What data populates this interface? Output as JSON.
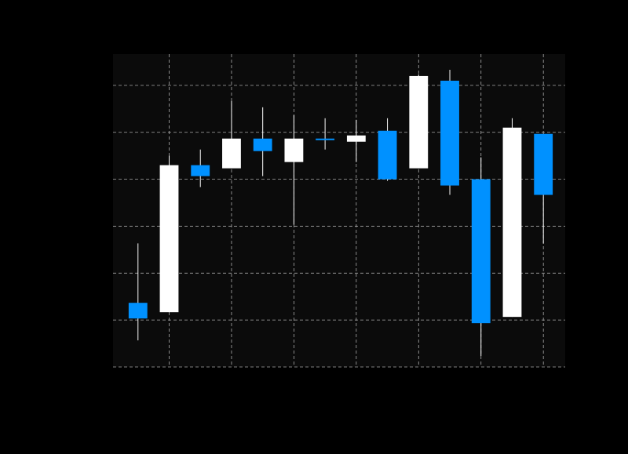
{
  "colors": {
    "background": "#000000",
    "plot_background": "#0b0b0b",
    "grid": "#aaaaaa",
    "increasing": "#ffffff",
    "decreasing": "#0091ff",
    "wick": "#ffffff"
  },
  "chart_data": {
    "type": "candlestick",
    "title": "",
    "xlabel": "",
    "ylabel": "",
    "x": [
      1,
      2,
      3,
      4,
      5,
      6,
      7,
      8,
      9,
      10,
      11,
      12,
      13,
      14
    ],
    "xlim": [
      0.2,
      14.7
    ],
    "ylim": [
      0,
      100
    ],
    "grid": true,
    "legend": "none",
    "candles": [
      {
        "open": 20.5,
        "high": 39.5,
        "low": 8.5,
        "close": 15.5
      },
      {
        "open": 17.5,
        "high": 67.5,
        "low": 17.5,
        "close": 64.5
      },
      {
        "open": 64.5,
        "high": 69.5,
        "low": 57.5,
        "close": 61.0
      },
      {
        "open": 63.5,
        "high": 85.0,
        "low": 63.5,
        "close": 73.0
      },
      {
        "open": 73.0,
        "high": 83.0,
        "low": 61.0,
        "close": 69.0
      },
      {
        "open": 65.5,
        "high": 80.5,
        "low": 45.5,
        "close": 73.0
      },
      {
        "open": 73.0,
        "high": 79.5,
        "low": 69.5,
        "close": 72.5
      },
      {
        "open": 72.0,
        "high": 79.0,
        "low": 65.5,
        "close": 74.0
      },
      {
        "open": 75.5,
        "high": 79.5,
        "low": 59.5,
        "close": 60.0
      },
      {
        "open": 63.5,
        "high": 93.5,
        "low": 63.5,
        "close": 93.0
      },
      {
        "open": 91.5,
        "high": 95.0,
        "low": 55.0,
        "close": 58.0
      },
      {
        "open": 60.0,
        "high": 67.0,
        "low": 3.5,
        "close": 14.0
      },
      {
        "open": 16.0,
        "high": 79.5,
        "low": 16.0,
        "close": 76.5
      },
      {
        "open": 74.5,
        "high": 74.5,
        "low": 39.5,
        "close": 55.0
      }
    ]
  }
}
